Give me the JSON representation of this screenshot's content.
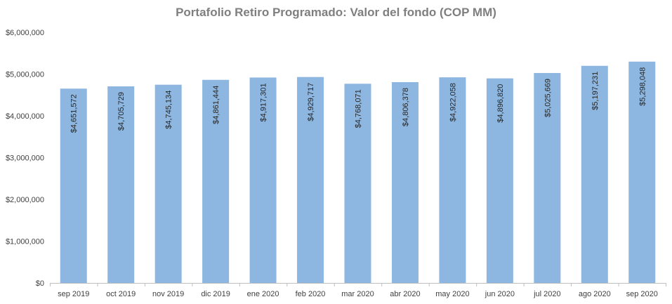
{
  "chart_data": {
    "type": "bar",
    "title": "Portafolio Retiro Programado: Valor del fondo (COP MM)",
    "xlabel": "",
    "ylabel": "",
    "categories": [
      "sep 2019",
      "oct 2019",
      "nov 2019",
      "dic 2019",
      "ene 2020",
      "feb 2020",
      "mar 2020",
      "abr 2020",
      "may 2020",
      "jun 2020",
      "jul 2020",
      "ago 2020",
      "sep 2020"
    ],
    "values": [
      4651572,
      4705729,
      4745134,
      4861444,
      4917301,
      4929717,
      4768071,
      4806378,
      4922058,
      4896820,
      5025669,
      5197231,
      5298048
    ],
    "value_labels": [
      "$4,651,572",
      "$4,705,729",
      "$4,745,134",
      "$4,861,444",
      "$4,917,301",
      "$4,929,717",
      "$4,768,071",
      "$4,806,378",
      "$4,922,058",
      "$4,896,820",
      "$5,025,669",
      "$5,197,231",
      "$5,298,048"
    ],
    "ylim": [
      0,
      6000000
    ],
    "yticks": [
      0,
      1000000,
      2000000,
      3000000,
      4000000,
      5000000,
      6000000
    ],
    "ytick_labels": [
      "$0",
      "$1,000,000",
      "$2,000,000",
      "$3,000,000",
      "$4,000,000",
      "$5,000,000",
      "$6,000,000"
    ],
    "grid": false,
    "legend": "none",
    "bar_color": "#8db7e0",
    "label_orientation": "vertical-inside-top"
  }
}
